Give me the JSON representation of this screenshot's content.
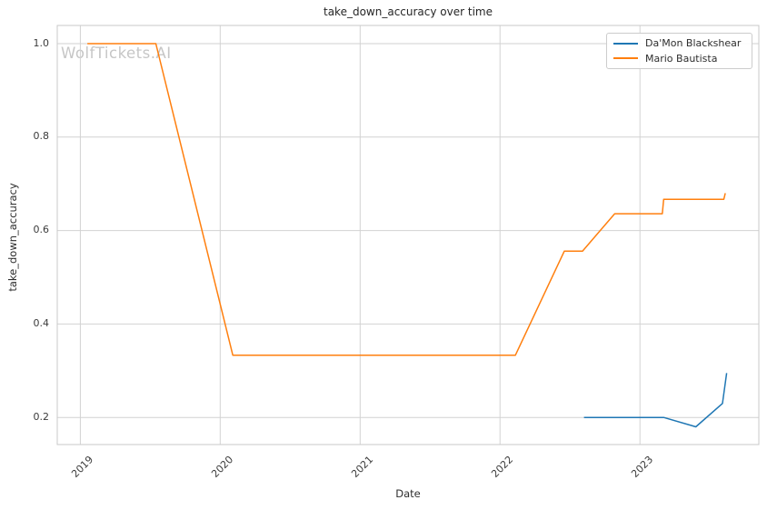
{
  "style": {
    "background_color": "#ffffff",
    "grid_color": "#d2d2d2",
    "spine_color": "#c9c9c9",
    "text_color": "#2e2e2e",
    "tick_text_color": "#3b3b3b",
    "watermark_color": "#c6c6c6"
  },
  "watermark": {
    "text": "WolfTickets.AI"
  },
  "chart_data": {
    "type": "line",
    "title": "take_down_accuracy over time",
    "xlabel": "Date",
    "ylabel": "take_down_accuracy",
    "x_unit": "decimal_year",
    "xlim": [
      2018.835,
      2023.85
    ],
    "ylim": [
      0.142,
      1.039
    ],
    "x_tick_labels": [
      "2019",
      "2020",
      "2021",
      "2022",
      "2023"
    ],
    "y_tick_labels": [
      "0.2",
      "0.4",
      "0.6",
      "0.8",
      "1.0"
    ],
    "grid": true,
    "legend_position": "upper right",
    "series": [
      {
        "name": "Da'Mon Blackshear",
        "color": "#1f77b4",
        "points": [
          [
            2022.6,
            0.2
          ],
          [
            2023.17,
            0.2
          ],
          [
            2023.4,
            0.18
          ],
          [
            2023.59,
            0.23
          ],
          [
            2023.62,
            0.295
          ]
        ]
      },
      {
        "name": "Mario Bautista",
        "color": "#ff7f0e",
        "points": [
          [
            2019.05,
            1.0
          ],
          [
            2019.54,
            1.0
          ],
          [
            2020.09,
            0.333
          ],
          [
            2022.11,
            0.333
          ],
          [
            2022.46,
            0.556
          ],
          [
            2022.59,
            0.556
          ],
          [
            2022.82,
            0.636
          ],
          [
            2023.16,
            0.636
          ],
          [
            2023.17,
            0.667
          ],
          [
            2023.6,
            0.667
          ],
          [
            2023.61,
            0.68
          ]
        ]
      }
    ]
  }
}
